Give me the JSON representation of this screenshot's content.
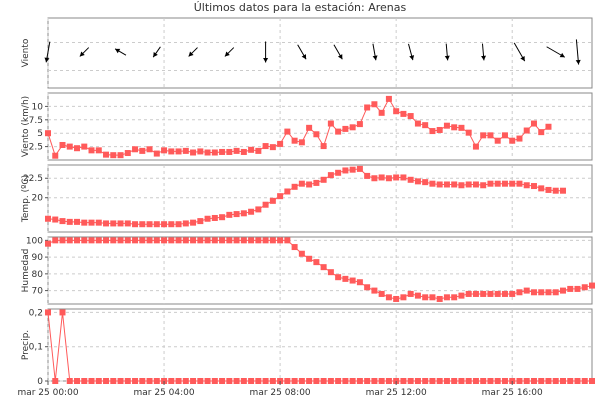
{
  "title": "Últimos datos para la estación: Arenas",
  "colors": {
    "series": "#ff5a5a",
    "marker": "#ff5a5a",
    "wind_arrow": "#000000",
    "grid": "#cccccc"
  },
  "x_axis": {
    "tick_labels": [
      "mar 25 00:00",
      "mar 25 04:00",
      "mar 25 08:00",
      "mar 25 12:00",
      "mar 25 16:00"
    ],
    "tick_hours": [
      0,
      4,
      8,
      12,
      16
    ],
    "range_hours": [
      0,
      18.75
    ]
  },
  "chart_data": [
    {
      "type": "vector",
      "ylabel": "Viento",
      "x_hours": [
        0,
        1.25,
        2.5,
        3.75,
        5,
        6.25,
        7.5,
        8.75,
        10,
        11.25,
        12.5,
        13.75,
        15,
        16.25,
        17.5,
        18.25
      ],
      "direction_deg": [
        10,
        45,
        120,
        35,
        45,
        45,
        0,
        330,
        330,
        350,
        345,
        355,
        355,
        330,
        300,
        355
      ],
      "speed_kmh": [
        5,
        3,
        3,
        3,
        3,
        3,
        5,
        4,
        4,
        4,
        4,
        4,
        4,
        5,
        5,
        6
      ],
      "grid": true
    },
    {
      "type": "line",
      "ylabel": "Viento (km/h)",
      "yticks": [
        2.5,
        5,
        7.5,
        10
      ],
      "ylim": [
        0,
        12.5
      ],
      "x_step_hours": 0.25,
      "values": [
        5.0,
        0.8,
        2.8,
        2.5,
        2.2,
        2.5,
        1.8,
        1.8,
        1.0,
        0.9,
        0.9,
        1.3,
        2.0,
        1.7,
        2.0,
        1.2,
        1.8,
        1.6,
        1.6,
        1.7,
        1.4,
        1.6,
        1.4,
        1.4,
        1.5,
        1.5,
        1.7,
        1.5,
        1.9,
        1.7,
        2.6,
        2.4,
        3.0,
        5.3,
        3.6,
        3.3,
        6.0,
        4.8,
        2.6,
        6.8,
        5.3,
        5.8,
        6.1,
        6.7,
        9.8,
        10.4,
        8.8,
        11.4,
        9.1,
        8.6,
        8.2,
        6.8,
        6.5,
        5.4,
        5.6,
        6.4,
        6.1,
        6.0,
        5.1,
        2.5,
        4.6,
        4.6,
        3.6,
        4.6,
        3.6,
        4.0,
        5.5,
        6.8,
        5.2,
        6.2
      ],
      "grid": true
    },
    {
      "type": "line",
      "ylabel": "Temp. (ºC)",
      "yticks": [
        20,
        22.5
      ],
      "ylim": [
        15.6,
        24.2
      ],
      "x_step_hours": 0.25,
      "values": [
        17.3,
        17.2,
        17.0,
        16.9,
        16.9,
        16.8,
        16.8,
        16.8,
        16.7,
        16.7,
        16.7,
        16.7,
        16.6,
        16.6,
        16.6,
        16.6,
        16.6,
        16.6,
        16.6,
        16.7,
        16.8,
        17.0,
        17.3,
        17.4,
        17.5,
        17.8,
        17.9,
        18.0,
        18.2,
        18.5,
        19.1,
        19.6,
        20.2,
        20.8,
        21.4,
        21.8,
        21.7,
        21.9,
        22.3,
        22.9,
        23.2,
        23.5,
        23.6,
        23.7,
        22.8,
        22.5,
        22.6,
        22.5,
        22.6,
        22.6,
        22.3,
        22.1,
        22.0,
        21.8,
        21.7,
        21.7,
        21.7,
        21.6,
        21.7,
        21.7,
        21.6,
        21.8,
        21.8,
        21.8,
        21.8,
        21.8,
        21.6,
        21.5,
        21.2,
        21.0,
        20.9,
        20.9
      ],
      "grid": true
    },
    {
      "type": "line",
      "ylabel": "Humedad",
      "yticks": [
        70,
        80,
        90,
        100
      ],
      "ylim": [
        62,
        102
      ],
      "x_step_hours": 0.25,
      "values": [
        98,
        100,
        100,
        100,
        100,
        100,
        100,
        100,
        100,
        100,
        100,
        100,
        100,
        100,
        100,
        100,
        100,
        100,
        100,
        100,
        100,
        100,
        100,
        100,
        100,
        100,
        100,
        100,
        100,
        100,
        100,
        100,
        100,
        100,
        96,
        92,
        89,
        87,
        84,
        81,
        78,
        77,
        76,
        75,
        72,
        70,
        68,
        66,
        65,
        66,
        68,
        67,
        66,
        66,
        65,
        66,
        66,
        67,
        68,
        68,
        68,
        68,
        68,
        68,
        68,
        69,
        70,
        69,
        69,
        69,
        69,
        70,
        71,
        71,
        72,
        73
      ],
      "grid": true
    },
    {
      "type": "line",
      "ylabel": "Precip.",
      "yticks": [
        0,
        0.1,
        0.2
      ],
      "ytick_labels": [
        "0",
        "0,1",
        "0,2"
      ],
      "ylim": [
        0,
        0.21
      ],
      "x_step_hours": 0.25,
      "values": [
        0.2,
        0.0,
        0.2,
        0.0,
        0.0,
        0.0,
        0.0,
        0.0,
        0.0,
        0.0,
        0.0,
        0.0,
        0.0,
        0.0,
        0.0,
        0.0,
        0.0,
        0.0,
        0.0,
        0.0,
        0.0,
        0.0,
        0.0,
        0.0,
        0.0,
        0.0,
        0.0,
        0.0,
        0.0,
        0.0,
        0.0,
        0.0,
        0.0,
        0.0,
        0.0,
        0.0,
        0.0,
        0.0,
        0.0,
        0.0,
        0.0,
        0.0,
        0.0,
        0.0,
        0.0,
        0.0,
        0.0,
        0.0,
        0.0,
        0.0,
        0.0,
        0.0,
        0.0,
        0.0,
        0.0,
        0.0,
        0.0,
        0.0,
        0.0,
        0.0,
        0.0,
        0.0,
        0.0,
        0.0,
        0.0,
        0.0,
        0.0,
        0.0,
        0.0,
        0.0,
        0.0,
        0.0,
        0.0,
        0.0,
        0.0,
        0.0
      ],
      "grid": true
    }
  ]
}
